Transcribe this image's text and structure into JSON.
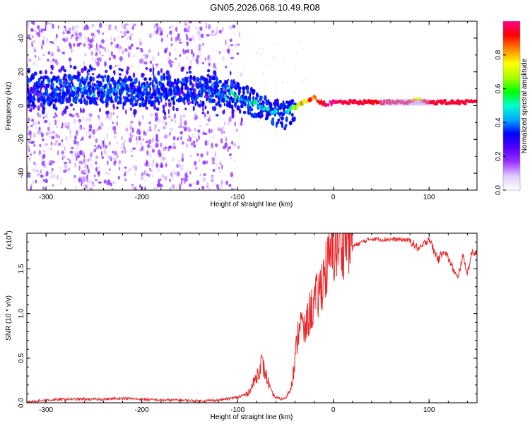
{
  "title": "GN05.2026.068.10.49.R08",
  "chart_data": [
    {
      "type": "heatmap",
      "xlabel": "Height of straight line (km)",
      "ylabel": "Frequency (Hz)",
      "xlim": [
        -320,
        150
      ],
      "ylim": [
        -50,
        50
      ],
      "xticks": [
        -300,
        -200,
        -100,
        0,
        100
      ],
      "yticks": [
        -40,
        -20,
        0,
        20,
        40
      ],
      "colorbar": {
        "label": "Normalized spectral amplitude",
        "range": [
          0.0,
          1.0
        ],
        "ticks": [
          "0.0",
          "0.2",
          "0.4",
          "0.6",
          "0.8"
        ],
        "colors": [
          "#ffffff",
          "#e0ccff",
          "#9933ff",
          "#5500ff",
          "#0000ff",
          "#00aaff",
          "#00ffcc",
          "#00ff00",
          "#aaff00",
          "#ffff00",
          "#ff8800",
          "#ff0000",
          "#ff0088"
        ]
      },
      "ridge": {
        "x": [
          -320,
          -300,
          -280,
          -260,
          -240,
          -220,
          -200,
          -180,
          -160,
          -140,
          -120,
          -100,
          -90,
          -80,
          -70,
          -60,
          -52,
          -45,
          -35,
          -25,
          -20,
          -15,
          -10,
          -5,
          0,
          10,
          30,
          60,
          80,
          90,
          95,
          100,
          120,
          150
        ],
        "freq": [
          9,
          9,
          10,
          9,
          10,
          9,
          8,
          9,
          9,
          9,
          8,
          5,
          3,
          1,
          -2,
          -4,
          -6,
          -2,
          1,
          3,
          5,
          3,
          1,
          1,
          2,
          2,
          2,
          2,
          2,
          4,
          3,
          2,
          2,
          2
        ],
        "amplitude": [
          0.15,
          0.2,
          0.25,
          0.3,
          0.3,
          0.3,
          0.25,
          0.25,
          0.2,
          0.2,
          0.25,
          0.45,
          0.45,
          0.5,
          0.45,
          0.4,
          0.35,
          0.55,
          0.7,
          0.9,
          0.85,
          0.9,
          0.95,
          1.0,
          1.0,
          0.95,
          0.95,
          0.9,
          0.9,
          0.7,
          0.9,
          0.95,
          0.95,
          0.95
        ]
      }
    },
    {
      "type": "line",
      "xlabel": "Height of straight line (km)",
      "ylabel": "SNR (10 * v/v)",
      "scale_label": "(x10",
      "scale_exp": "4",
      "color": "#e8282a",
      "xlim": [
        -320,
        150
      ],
      "ylim": [
        0,
        1.9
      ],
      "xticks": [
        -300,
        -200,
        -100,
        0,
        100
      ],
      "yticks": [
        0.0,
        0.5,
        1.0,
        1.5
      ],
      "x": [
        -320,
        -300,
        -280,
        -260,
        -240,
        -220,
        -200,
        -180,
        -160,
        -140,
        -120,
        -100,
        -90,
        -85,
        -80,
        -75,
        -70,
        -65,
        -60,
        -55,
        -50,
        -45,
        -40,
        -35,
        -30,
        -25,
        -20,
        -15,
        -10,
        -5,
        0,
        10,
        20,
        30,
        40,
        50,
        60,
        70,
        80,
        85,
        90,
        95,
        100,
        105,
        110,
        115,
        120,
        125,
        130,
        135,
        140,
        145,
        150
      ],
      "y": [
        0.01,
        0.03,
        0.04,
        0.04,
        0.04,
        0.05,
        0.04,
        0.03,
        0.03,
        0.02,
        0.03,
        0.06,
        0.1,
        0.18,
        0.3,
        0.45,
        0.3,
        0.12,
        0.06,
        0.04,
        0.05,
        0.15,
        0.45,
        0.85,
        0.7,
        0.9,
        1.0,
        1.1,
        1.3,
        1.4,
        1.55,
        1.65,
        1.75,
        1.8,
        1.84,
        1.83,
        1.83,
        1.83,
        1.82,
        1.76,
        1.72,
        1.78,
        1.85,
        1.7,
        1.6,
        1.72,
        1.62,
        1.5,
        1.38,
        1.66,
        1.45,
        1.7,
        1.67
      ]
    }
  ]
}
